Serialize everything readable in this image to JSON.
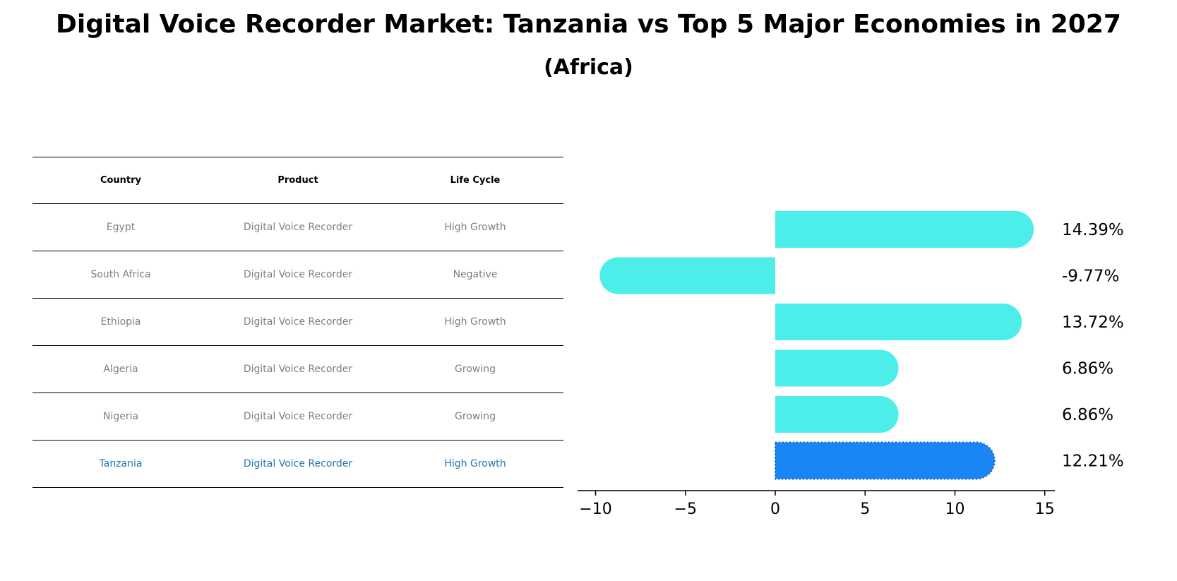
{
  "header": {
    "title": "Digital Voice Recorder Market: Tanzania vs Top 5 Major Economies in 2027",
    "subtitle": "(Africa)"
  },
  "table": {
    "columns": [
      "Country",
      "Product",
      "Life Cycle"
    ],
    "rows": [
      [
        "Egypt",
        "Digital Voice Recorder",
        "High Growth"
      ],
      [
        "South Africa",
        "Digital Voice Recorder",
        "Negative"
      ],
      [
        "Ethiopia",
        "Digital Voice Recorder",
        "High Growth"
      ],
      [
        "Algeria",
        "Digital Voice Recorder",
        "Growing"
      ],
      [
        "Nigeria",
        "Digital Voice Recorder",
        "Growing"
      ],
      [
        "Tanzania",
        "Digital Voice Recorder",
        "High Growth"
      ]
    ],
    "highlight_row": 5
  },
  "colors": {
    "bar": "#4deeea",
    "highlight_bar": "#1a86f5",
    "highlight_text": "#1f77b4",
    "muted_text": "#7f7f7f"
  },
  "chart_data": {
    "type": "bar",
    "orientation": "horizontal",
    "categories": [
      "Egypt",
      "South Africa",
      "Ethiopia",
      "Algeria",
      "Nigeria",
      "Tanzania"
    ],
    "values": [
      14.39,
      -9.77,
      13.72,
      6.86,
      6.86,
      12.21
    ],
    "labels": [
      "14.39%",
      "-9.77%",
      "13.72%",
      "6.86%",
      "6.86%",
      "12.21%"
    ],
    "highlight": "Tanzania",
    "xlim": [
      -11,
      15.7
    ],
    "xticks": [
      -10,
      -5,
      0,
      5,
      10,
      15
    ],
    "xtick_labels": [
      "−10",
      "−5",
      "0",
      "5",
      "10",
      "15"
    ],
    "grid": false
  }
}
